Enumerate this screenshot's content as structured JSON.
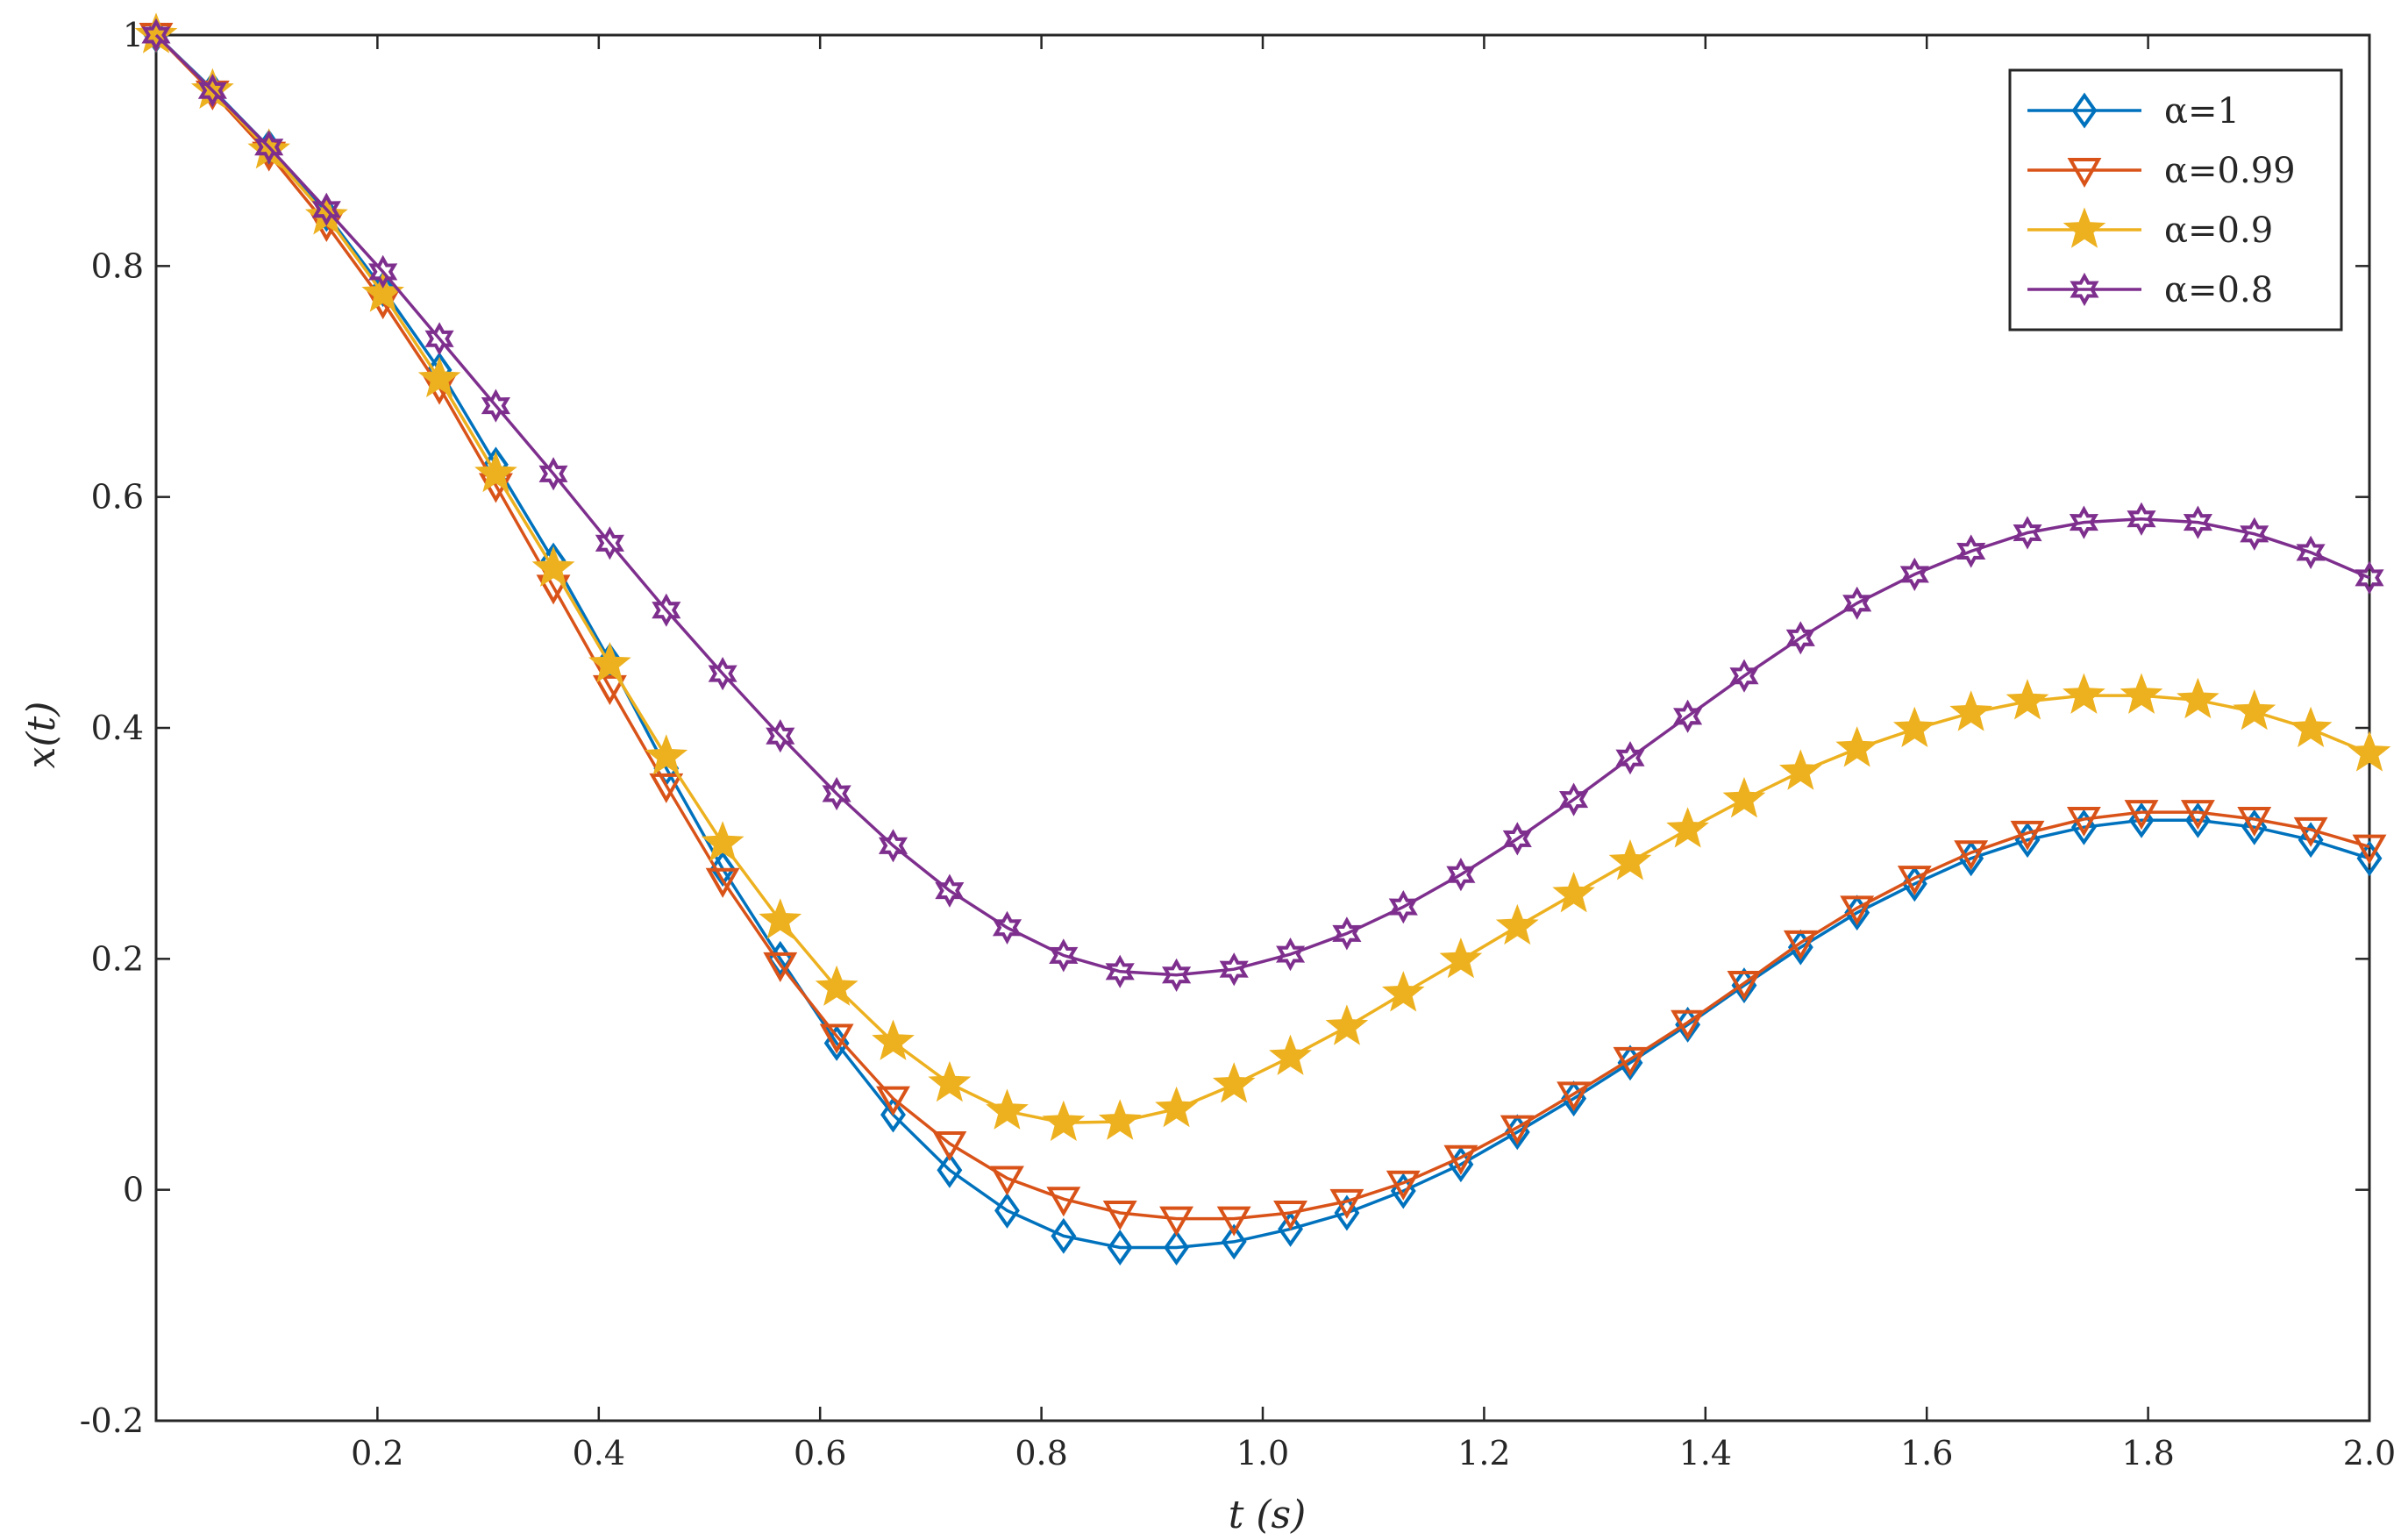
{
  "chart_data": {
    "type": "line",
    "title": "",
    "xlabel": "t (s)",
    "ylabel": "x(t)",
    "xlim": [
      0,
      2.0
    ],
    "ylim": [
      -0.2,
      1.0
    ],
    "xticks": [
      0.2,
      0.4,
      0.6,
      0.8,
      1.0,
      1.2,
      1.4,
      1.6,
      1.8,
      2.0
    ],
    "xtick_labels": [
      "0.2",
      "0.4",
      "0.6",
      "0.8",
      "1.0",
      "1.2",
      "1.4",
      "1.6",
      "1.8",
      "2.0"
    ],
    "yticks": [
      -0.2,
      0,
      0.2,
      0.4,
      0.6,
      0.8,
      1.0
    ],
    "ytick_labels": [
      "-0.2",
      "0",
      "0.2",
      "0.4",
      "0.6",
      "0.8",
      "1"
    ],
    "grid": false,
    "legend_position": "top-right",
    "x": [
      0,
      0.051,
      0.102,
      0.154,
      0.205,
      0.256,
      0.307,
      0.359,
      0.41,
      0.461,
      0.512,
      0.564,
      0.615,
      0.666,
      0.717,
      0.769,
      0.82,
      0.871,
      0.922,
      0.974,
      1.025,
      1.076,
      1.127,
      1.179,
      1.23,
      1.281,
      1.332,
      1.384,
      1.435,
      1.486,
      1.537,
      1.589,
      1.64,
      1.691,
      1.742,
      1.794,
      1.845,
      1.896,
      1.947,
      2.0
    ],
    "series": [
      {
        "name": "α=1",
        "color": "#0072BD",
        "marker": "diamond",
        "values": [
          1.0,
          0.953,
          0.903,
          0.845,
          0.78,
          0.71,
          0.628,
          0.545,
          0.458,
          0.365,
          0.278,
          0.2,
          0.127,
          0.065,
          0.017,
          -0.018,
          -0.04,
          -0.05,
          -0.05,
          -0.045,
          -0.034,
          -0.02,
          -0.001,
          0.022,
          0.05,
          0.079,
          0.11,
          0.143,
          0.177,
          0.21,
          0.24,
          0.265,
          0.287,
          0.303,
          0.314,
          0.32,
          0.32,
          0.314,
          0.303,
          0.287
        ]
      },
      {
        "name": "α=0.99",
        "color": "#D95319",
        "marker": "triangle-down",
        "values": [
          1.0,
          0.95,
          0.897,
          0.836,
          0.769,
          0.695,
          0.61,
          0.522,
          0.435,
          0.35,
          0.268,
          0.195,
          0.133,
          0.079,
          0.04,
          0.01,
          -0.008,
          -0.02,
          -0.025,
          -0.025,
          -0.02,
          -0.01,
          0.006,
          0.028,
          0.054,
          0.083,
          0.113,
          0.145,
          0.179,
          0.214,
          0.244,
          0.27,
          0.292,
          0.309,
          0.321,
          0.327,
          0.327,
          0.321,
          0.312,
          0.297
        ]
      },
      {
        "name": "α=0.9",
        "color": "#EDB120",
        "marker": "star5",
        "values": [
          1.0,
          0.952,
          0.9,
          0.843,
          0.776,
          0.702,
          0.62,
          0.538,
          0.455,
          0.375,
          0.3,
          0.233,
          0.175,
          0.128,
          0.092,
          0.068,
          0.058,
          0.059,
          0.07,
          0.091,
          0.115,
          0.141,
          0.17,
          0.199,
          0.228,
          0.256,
          0.284,
          0.312,
          0.338,
          0.362,
          0.382,
          0.399,
          0.413,
          0.423,
          0.428,
          0.428,
          0.424,
          0.414,
          0.399,
          0.378
        ]
      },
      {
        "name": "α=0.8",
        "color": "#7E2F8E",
        "marker": "star6",
        "values": [
          1.0,
          0.952,
          0.903,
          0.849,
          0.795,
          0.737,
          0.679,
          0.62,
          0.56,
          0.502,
          0.447,
          0.393,
          0.343,
          0.298,
          0.259,
          0.227,
          0.203,
          0.189,
          0.186,
          0.191,
          0.204,
          0.222,
          0.245,
          0.273,
          0.304,
          0.338,
          0.374,
          0.41,
          0.445,
          0.478,
          0.508,
          0.533,
          0.553,
          0.569,
          0.578,
          0.581,
          0.578,
          0.568,
          0.552,
          0.53
        ]
      }
    ]
  }
}
